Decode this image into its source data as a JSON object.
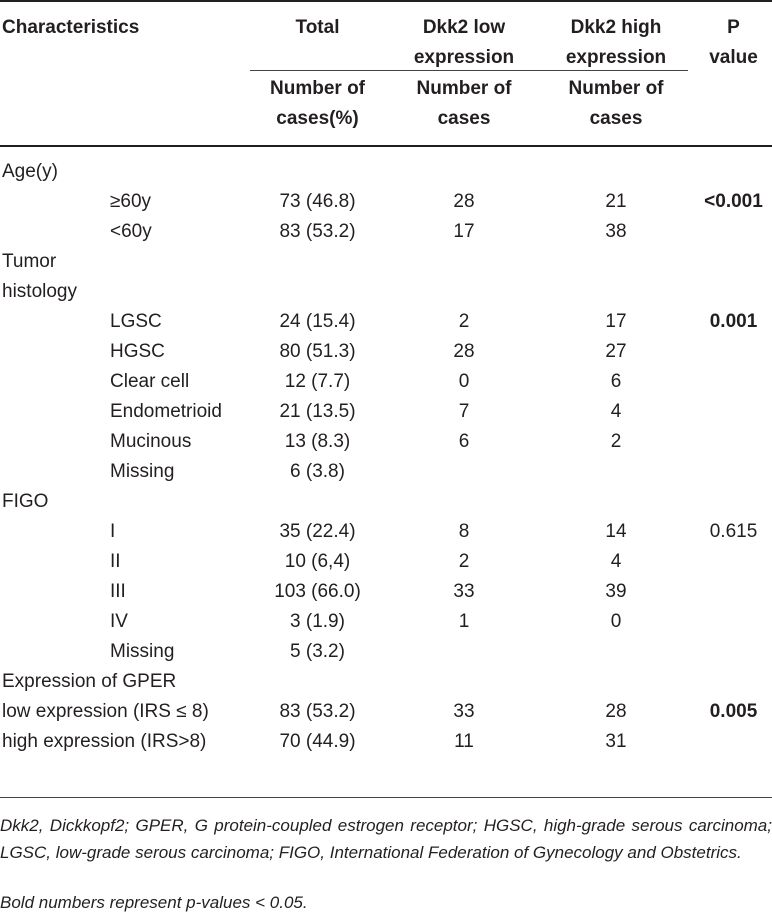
{
  "header": {
    "characteristics": "Characteristics",
    "total": "Total",
    "dkk2_low": [
      "Dkk2 low",
      "expression"
    ],
    "dkk2_high": [
      "Dkk2 high",
      "expression"
    ],
    "p_value": [
      "P",
      "value"
    ],
    "sub_total": [
      "Number of",
      "cases(%)"
    ],
    "sub_low": [
      "Number of",
      "cases"
    ],
    "sub_high": [
      "Number of",
      "cases"
    ]
  },
  "sections": [
    {
      "label": [
        "Age(y)"
      ],
      "rows": [
        {
          "label": "≥60y",
          "total": "73 (46.8)",
          "low": "28",
          "high": "21",
          "p": "<0.001",
          "p_bold": true
        },
        {
          "label": "<60y",
          "total": "83 (53.2)",
          "low": "17",
          "high": "38",
          "p": "",
          "p_bold": false
        }
      ]
    },
    {
      "label": [
        "Tumor",
        "histology"
      ],
      "rows": [
        {
          "label": "LGSC",
          "total": "24 (15.4)",
          "low": "2",
          "high": "17",
          "p": "0.001",
          "p_bold": true
        },
        {
          "label": "HGSC",
          "total": "80 (51.3)",
          "low": "28",
          "high": "27",
          "p": "",
          "p_bold": false
        },
        {
          "label": "Clear cell",
          "total": "12 (7.7)",
          "low": "0",
          "high": "6",
          "p": "",
          "p_bold": false
        },
        {
          "label": "Endometrioid",
          "total": "21 (13.5)",
          "low": "7",
          "high": "4",
          "p": "",
          "p_bold": false
        },
        {
          "label": "Mucinous",
          "total": "13 (8.3)",
          "low": "6",
          "high": "2",
          "p": "",
          "p_bold": false
        },
        {
          "label": "Missing",
          "total": "6 (3.8)",
          "low": "",
          "high": "",
          "p": "",
          "p_bold": false
        }
      ]
    },
    {
      "label": [
        "FIGO"
      ],
      "rows": [
        {
          "label": "I",
          "total": "35 (22.4)",
          "low": "8",
          "high": "14",
          "p": "0.615",
          "p_bold": false
        },
        {
          "label": "II",
          "total": "10 (6,4)",
          "low": "2",
          "high": "4",
          "p": "",
          "p_bold": false
        },
        {
          "label": "III",
          "total": "103 (66.0)",
          "low": "33",
          "high": "39",
          "p": "",
          "p_bold": false
        },
        {
          "label": "IV",
          "total": "3 (1.9)",
          "low": "1",
          "high": "0",
          "p": "",
          "p_bold": false
        },
        {
          "label": "Missing",
          "total": "5 (3.2)",
          "low": "",
          "high": "",
          "p": "",
          "p_bold": false
        }
      ]
    },
    {
      "label": [
        "Expression of GPER"
      ],
      "rows": [
        {
          "label": "low expression (IRS ≤ 8)",
          "total": "83 (53.2)",
          "low": "33",
          "high": "28",
          "p": "0.005",
          "p_bold": true,
          "flush": true
        },
        {
          "label": "high expression (IRS>8)",
          "total": "70 (44.9)",
          "low": "11",
          "high": "31",
          "p": "",
          "p_bold": false,
          "flush": true
        }
      ]
    }
  ],
  "footnotes": [
    "Dkk2, Dickkopf2; GPER, G protein-coupled estrogen receptor; HGSC, high-grade serous carcinoma; LGSC, low-grade serous carcinoma; FIGO, International Federation of Gynecology and Obstetrics.",
    "Bold numbers represent p-values < 0.05."
  ]
}
